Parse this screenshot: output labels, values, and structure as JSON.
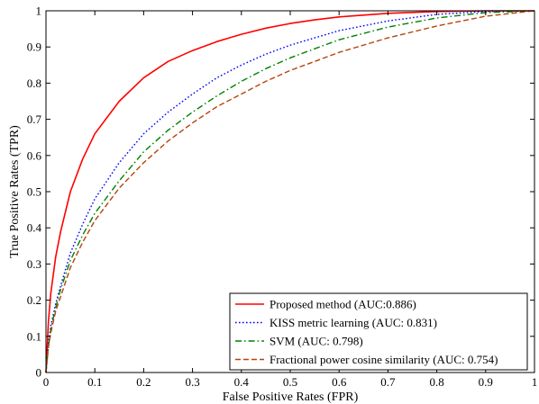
{
  "chart_data": {
    "type": "line",
    "title": "",
    "xlabel": "False Positive Rates (FPR)",
    "ylabel": "True Positive Rates (TPR)",
    "xlim": [
      0,
      1
    ],
    "ylim": [
      0,
      1
    ],
    "xticks": [
      "0",
      "0.1",
      "0.2",
      "0.3",
      "0.4",
      "0.5",
      "0.6",
      "0.7",
      "0.8",
      "0.9",
      "1"
    ],
    "yticks": [
      "0",
      "0.1",
      "0.2",
      "0.3",
      "0.4",
      "0.5",
      "0.6",
      "0.7",
      "0.8",
      "0.9",
      "1"
    ],
    "grid": false,
    "legend_position": "bottom-right",
    "series": [
      {
        "name": "Proposed method (AUC:0.886)",
        "color": "#ff0000",
        "style": "solid",
        "x": [
          0,
          0.005,
          0.01,
          0.02,
          0.03,
          0.05,
          0.075,
          0.1,
          0.15,
          0.2,
          0.25,
          0.3,
          0.35,
          0.4,
          0.45,
          0.5,
          0.55,
          0.6,
          0.7,
          0.8,
          0.9,
          1.0
        ],
        "y": [
          0,
          0.14,
          0.22,
          0.32,
          0.39,
          0.5,
          0.59,
          0.66,
          0.75,
          0.815,
          0.86,
          0.89,
          0.915,
          0.935,
          0.952,
          0.965,
          0.975,
          0.983,
          0.993,
          0.998,
          1.0,
          1.0
        ]
      },
      {
        "name": "KISS metric learning (AUC: 0.831)",
        "color": "#0000ff",
        "style": "dotted",
        "x": [
          0,
          0.005,
          0.01,
          0.02,
          0.03,
          0.05,
          0.075,
          0.1,
          0.15,
          0.2,
          0.25,
          0.3,
          0.35,
          0.4,
          0.45,
          0.5,
          0.55,
          0.6,
          0.7,
          0.8,
          0.9,
          1.0
        ],
        "y": [
          0,
          0.08,
          0.13,
          0.19,
          0.24,
          0.33,
          0.41,
          0.48,
          0.58,
          0.66,
          0.72,
          0.77,
          0.815,
          0.85,
          0.88,
          0.905,
          0.925,
          0.945,
          0.972,
          0.99,
          0.998,
          1.0
        ]
      },
      {
        "name": "SVM (AUC: 0.798)",
        "color": "#008000",
        "style": "dashdot",
        "x": [
          0,
          0.005,
          0.01,
          0.02,
          0.03,
          0.05,
          0.075,
          0.1,
          0.15,
          0.2,
          0.25,
          0.3,
          0.35,
          0.4,
          0.45,
          0.5,
          0.55,
          0.6,
          0.7,
          0.8,
          0.9,
          1.0
        ],
        "y": [
          0,
          0.07,
          0.12,
          0.18,
          0.23,
          0.31,
          0.38,
          0.44,
          0.53,
          0.61,
          0.67,
          0.72,
          0.765,
          0.805,
          0.84,
          0.87,
          0.895,
          0.92,
          0.955,
          0.98,
          0.995,
          1.0
        ]
      },
      {
        "name": "Fractional power cosine similarity (AUC: 0.754)",
        "color": "#b5450b",
        "style": "dashed",
        "x": [
          0,
          0.005,
          0.01,
          0.02,
          0.03,
          0.05,
          0.075,
          0.1,
          0.15,
          0.2,
          0.25,
          0.3,
          0.35,
          0.4,
          0.45,
          0.5,
          0.55,
          0.6,
          0.7,
          0.8,
          0.9,
          1.0
        ],
        "y": [
          0,
          0.07,
          0.11,
          0.17,
          0.21,
          0.29,
          0.36,
          0.42,
          0.51,
          0.58,
          0.64,
          0.69,
          0.735,
          0.77,
          0.805,
          0.835,
          0.86,
          0.885,
          0.925,
          0.958,
          0.985,
          1.0
        ]
      }
    ]
  }
}
